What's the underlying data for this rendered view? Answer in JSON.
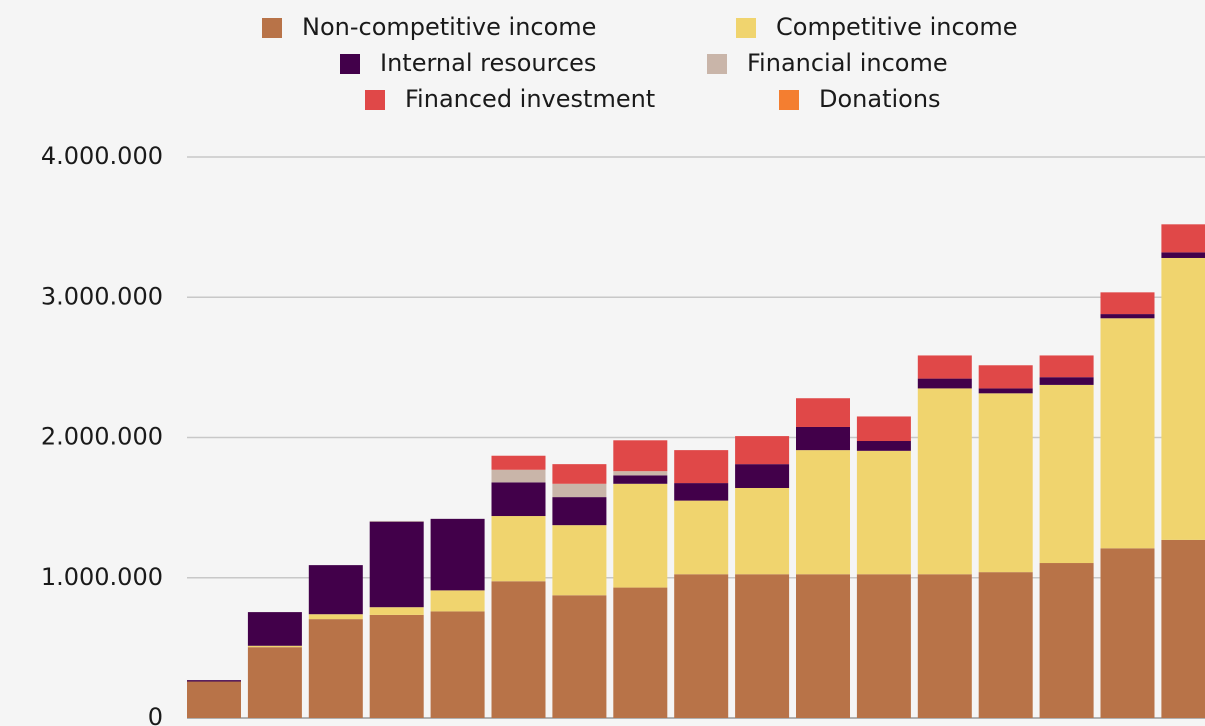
{
  "chart_data": {
    "type": "stacked_bar",
    "categories": [
      null,
      null,
      null,
      null,
      null,
      null,
      null,
      null,
      null,
      null,
      null,
      null,
      null,
      null,
      null,
      null,
      null
    ],
    "series": [
      {
        "name": "Non-competitive income",
        "color": "#b87348",
        "values": [
          260000,
          505000,
          705000,
          735000,
          760000,
          975000,
          875000,
          930000,
          1025000,
          1025000,
          1025000,
          1025000,
          1025000,
          1040000,
          1105000,
          1210000,
          1270000
        ]
      },
      {
        "name": "Competitive income",
        "color": "#f0d46e",
        "values": [
          0,
          10000,
          35000,
          55000,
          150000,
          465000,
          500000,
          740000,
          525000,
          615000,
          885000,
          880000,
          1325000,
          1275000,
          1270000,
          1640000,
          2010000
        ]
      },
      {
        "name": "Internal resources",
        "color": "#42004a",
        "values": [
          10000,
          240000,
          350000,
          610000,
          510000,
          240000,
          200000,
          60000,
          125000,
          170000,
          165000,
          70000,
          70000,
          35000,
          55000,
          30000,
          40000
        ]
      },
      {
        "name": "Financial income",
        "color": "#c9b5a9",
        "values": [
          0,
          0,
          0,
          5000,
          0,
          90000,
          95000,
          30000,
          0,
          0,
          0,
          0,
          0,
          0,
          0,
          0,
          0
        ]
      },
      {
        "name": "Financed investment",
        "color": "#e04848",
        "values": [
          0,
          0,
          0,
          0,
          0,
          100000,
          140000,
          220000,
          235000,
          200000,
          205000,
          175000,
          165000,
          165000,
          155000,
          155000,
          200000
        ]
      },
      {
        "name": "Donations",
        "color": "#f47e30",
        "values": [
          0,
          0,
          0,
          0,
          0,
          0,
          0,
          0,
          0,
          0,
          0,
          0,
          0,
          0,
          0,
          0,
          0
        ]
      }
    ],
    "ylim": [
      0,
      4000000
    ],
    "yticks": [
      0,
      {
        "value": 1000000,
        "label": "1.000.000"
      },
      {
        "value": 2000000,
        "label": "2.000.000"
      },
      {
        "value": 3000000,
        "label": "3.000.000"
      },
      {
        "value": 4000000,
        "label": "4.000.000"
      }
    ],
    "grid": true,
    "legend": "top"
  }
}
